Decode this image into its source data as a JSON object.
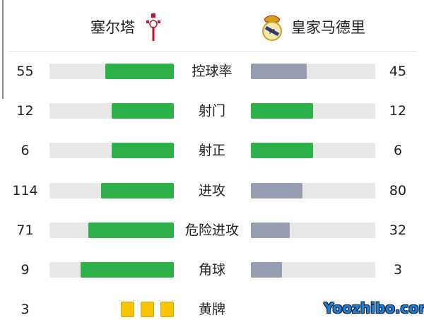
{
  "home": {
    "name": "塞尔塔",
    "logo": "celta-crest-icon"
  },
  "away": {
    "name": "皇家马德里",
    "logo": "real-madrid-crest-icon"
  },
  "colors": {
    "leading": "#2db24a",
    "trailing": "#959daf",
    "track": "#e8e8e8",
    "yellow_card": "#f7c600"
  },
  "stats": [
    {
      "label": "控球率",
      "home": 55,
      "away": 45
    },
    {
      "label": "射门",
      "home": 12,
      "away": 12
    },
    {
      "label": "射正",
      "home": 6,
      "away": 6
    },
    {
      "label": "进攻",
      "home": 114,
      "away": 80
    },
    {
      "label": "危险进攻",
      "home": 71,
      "away": 32
    },
    {
      "label": "角球",
      "home": 9,
      "away": 3
    }
  ],
  "yellow_cards": {
    "label": "黄牌",
    "home": 3,
    "away": 0
  },
  "watermark": "Yoozhibo.com"
}
